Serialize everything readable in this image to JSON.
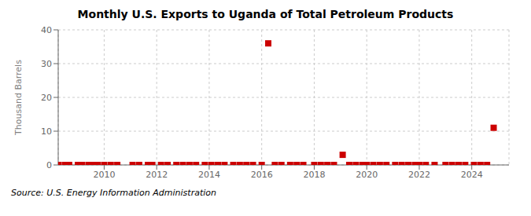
{
  "chart_data": {
    "type": "scatter",
    "title": "Monthly U.S. Exports to Uganda of Total Petroleum Products",
    "ylabel": "Thousand Barrels",
    "annotations": [
      "Source: U.S. Energy Information Administration"
    ],
    "x": [
      2008.25,
      2008.5,
      2008.6666666666667,
      2009,
      2009.1666666666667,
      2009.4166666666667,
      2009.5833333333333,
      2009.75,
      2010,
      2010.25,
      2010.5,
      2011.0833333333333,
      2011.3333333333333,
      2011.6666666666667,
      2011.8333333333333,
      2012.1666666666667,
      2012.4166666666667,
      2012.75,
      2013,
      2013.25,
      2013.5,
      2013.8333333333333,
      2014.0833333333333,
      2014.3333333333333,
      2014.5833333333333,
      2014.9166666666667,
      2015.1666666666667,
      2015.4166666666667,
      2015.6666666666667,
      2016,
      2016.25,
      2016.5,
      2016.75,
      2017.0833333333333,
      2017.3333333333333,
      2017.5833333333333,
      2018,
      2018.25,
      2018.5,
      2018.75,
      2019.0833333333333,
      2019.3333333333333,
      2019.5833333333333,
      2019.8333333333333,
      2020,
      2020.25,
      2020.5,
      2020.75,
      2021.0833333333333,
      2021.3333333333333,
      2021.5833333333333,
      2021.8333333333333,
      2022,
      2022.25,
      2022.5833333333333,
      2023,
      2023.25,
      2023.5,
      2023.75,
      2024.0833333333333,
      2024.3333333333333,
      2024.5833333333333,
      2024.8333333333333
    ],
    "values": [
      0,
      0,
      0,
      0,
      0,
      0,
      0,
      0,
      0,
      0,
      0,
      0,
      0,
      0,
      0,
      0,
      0,
      0,
      0,
      0,
      0,
      0,
      0,
      0,
      0,
      0,
      0,
      0,
      0,
      0,
      36,
      0,
      0,
      0,
      0,
      0,
      0,
      0,
      0,
      0,
      3,
      0,
      0,
      0,
      0,
      0,
      0,
      0,
      0,
      0,
      0,
      0,
      0,
      0,
      0,
      0,
      0,
      0,
      0,
      0,
      0,
      0,
      11
    ],
    "color": "#cc0000",
    "marker": "square",
    "xlim": [
      2008.25,
      2025.4166666666667
    ],
    "xticks": [
      2010,
      2012,
      2014,
      2016,
      2018,
      2020,
      2022,
      2024
    ],
    "ylim": [
      0,
      40
    ],
    "yticks": [
      0,
      10,
      20,
      30,
      40
    ],
    "grid": true
  }
}
